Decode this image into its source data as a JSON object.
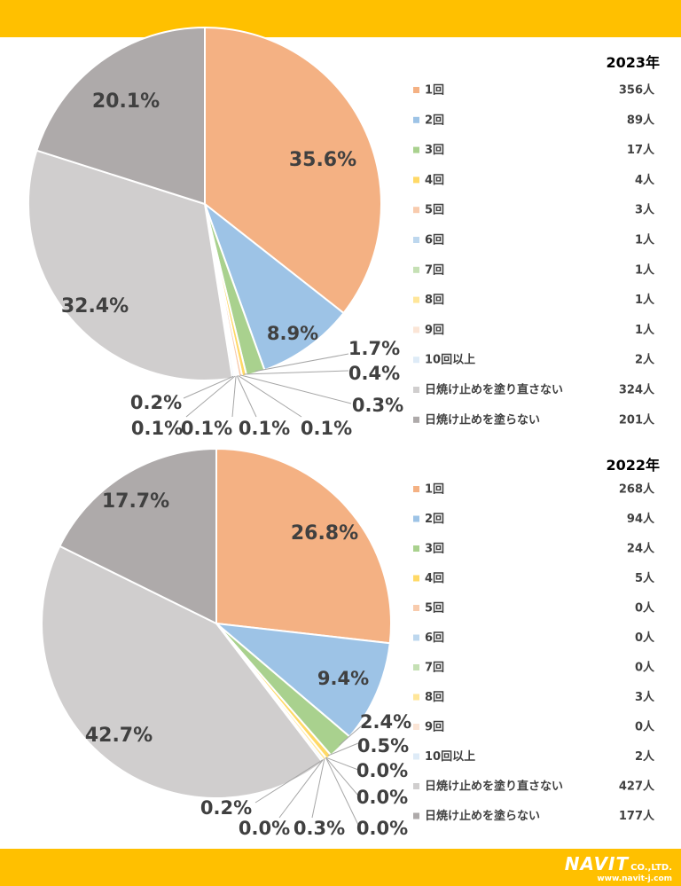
{
  "colors": {
    "band": "#FFC000",
    "label_text": "#404040",
    "leader": "#A6A6A6",
    "slices": [
      "#F4B183",
      "#9DC3E6",
      "#A9D18E",
      "#FFD966",
      "#F8CBAD",
      "#BDD7EE",
      "#C5E0B4",
      "#FFE699",
      "#FBE5D6",
      "#DEEBF7",
      "#D0CECE",
      "#AEAAAA"
    ]
  },
  "logo": {
    "main": "NAVIT",
    "sub": "CO.,LTD.",
    "url": "www.navit-j.com"
  },
  "chart_data": [
    {
      "type": "pie",
      "title": "2023年",
      "categories": [
        "1回",
        "2回",
        "3回",
        "4回",
        "5回",
        "6回",
        "7回",
        "8回",
        "9回",
        "10回以上",
        "日焼け止めを塗り直さない",
        "日焼け止めを塗らない"
      ],
      "values": [
        356,
        89,
        17,
        4,
        3,
        1,
        1,
        1,
        1,
        2,
        324,
        201
      ],
      "value_labels": [
        "356人",
        "89人",
        "17人",
        "4人",
        "3人",
        "1人",
        "1人",
        "1人",
        "1人",
        "2人",
        "324人",
        "201人"
      ],
      "percent_labels": [
        "35.6%",
        "8.9%",
        "1.7%",
        "0.4%",
        "0.3%",
        "0.1%",
        "0.1%",
        "0.1%",
        "0.1%",
        "0.2%",
        "32.4%",
        "20.1%"
      ],
      "legend_position": "right",
      "start_angle_deg": 0,
      "direction": "clockwise"
    },
    {
      "type": "pie",
      "title": "2022年",
      "categories": [
        "1回",
        "2回",
        "3回",
        "4回",
        "5回",
        "6回",
        "7回",
        "8回",
        "9回",
        "10回以上",
        "日焼け止めを塗り直さない",
        "日焼け止めを塗らない"
      ],
      "values": [
        268,
        94,
        24,
        5,
        0,
        0,
        0,
        3,
        0,
        2,
        427,
        177
      ],
      "value_labels": [
        "268人",
        "94人",
        "24人",
        "5人",
        "0人",
        "0人",
        "0人",
        "3人",
        "0人",
        "2人",
        "427人",
        "177人"
      ],
      "percent_labels": [
        "26.8%",
        "9.4%",
        "2.4%",
        "0.5%",
        "0.0%",
        "0.0%",
        "0.0%",
        "0.3%",
        "0.0%",
        "0.2%",
        "42.7%",
        "17.7%"
      ],
      "legend_position": "right",
      "start_angle_deg": 0,
      "direction": "clockwise"
    }
  ]
}
